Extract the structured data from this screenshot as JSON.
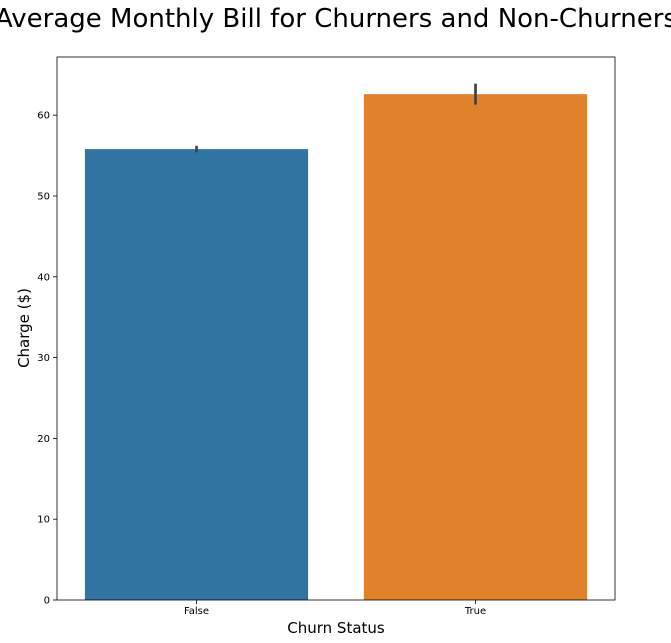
{
  "chart_data": {
    "type": "bar",
    "title": "Average Monthly Bill for Churners and Non-Churners",
    "xlabel": "Churn Status",
    "ylabel": "Charge ($)",
    "categories": [
      "False",
      "True"
    ],
    "values": [
      55.8,
      62.6
    ],
    "error_bars": [
      {
        "low": 55.4,
        "high": 56.2
      },
      {
        "low": 61.3,
        "high": 63.9
      }
    ],
    "colors": [
      "#3274a1",
      "#e1812c"
    ],
    "error_color": "#424242",
    "ylim": [
      0,
      67.2
    ],
    "yticks": [
      0,
      10,
      20,
      30,
      40,
      50,
      60
    ],
    "grid": false,
    "legend": "none"
  }
}
